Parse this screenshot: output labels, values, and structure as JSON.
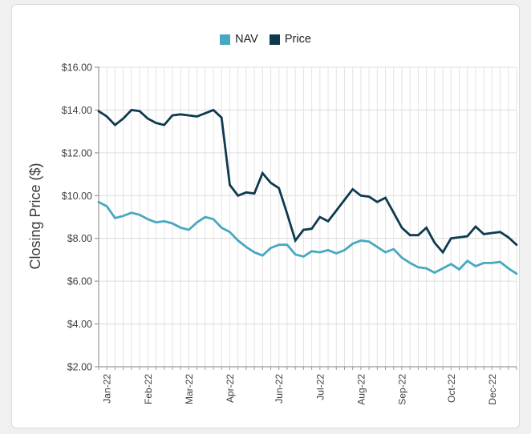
{
  "page": {
    "background": "#f0f0f1",
    "card_background": "#ffffff",
    "card_border": "#d9d9d9"
  },
  "chart_data": {
    "type": "line",
    "title": "",
    "xlabel": "",
    "ylabel": "Closing Price ($)",
    "ylim": [
      2,
      16
    ],
    "y_tick_step": 2,
    "y_tick_labels": [
      "$2.00",
      "$4.00",
      "$6.00",
      "$8.00",
      "$10.00",
      "$12.00",
      "$14.00",
      "$16.00"
    ],
    "x_ticks": [
      {
        "label": "Jan-22",
        "index": 1
      },
      {
        "label": "Feb-22",
        "index": 6
      },
      {
        "label": "Mar-22",
        "index": 11
      },
      {
        "label": "Apr-22",
        "index": 16
      },
      {
        "label": "Jun-22",
        "index": 22
      },
      {
        "label": "Jul-22",
        "index": 27
      },
      {
        "label": "Aug-22",
        "index": 32
      },
      {
        "label": "Sep-22",
        "index": 37
      },
      {
        "label": "Oct-22",
        "index": 43
      },
      {
        "label": "Dec-22",
        "index": 48
      }
    ],
    "grid": "both",
    "grid_color_vertical": "#e3e3e3",
    "grid_color_horizontal": "#dcdcdc",
    "axis_color": "#9a9a9a",
    "tick_label_color": "#404040",
    "legend_position": "top-center",
    "x_unit": "weekly, Jan-22 to Dec-22",
    "series": [
      {
        "name": "NAV",
        "color": "#47A8C2",
        "values": [
          9.7,
          9.5,
          8.95,
          9.05,
          9.2,
          9.1,
          8.9,
          8.75,
          8.8,
          8.7,
          8.5,
          8.4,
          8.75,
          9.0,
          8.9,
          8.5,
          8.3,
          7.9,
          7.6,
          7.35,
          7.2,
          7.55,
          7.7,
          7.7,
          7.25,
          7.15,
          7.4,
          7.35,
          7.45,
          7.3,
          7.45,
          7.75,
          7.9,
          7.85,
          7.6,
          7.35,
          7.5,
          7.1,
          6.85,
          6.65,
          6.6,
          6.4,
          6.6,
          6.8,
          6.55,
          6.95,
          6.7,
          6.85,
          6.85,
          6.9,
          6.6,
          6.35
        ]
      },
      {
        "name": "Price",
        "color": "#0E3A4F",
        "values": [
          13.95,
          13.7,
          13.3,
          13.6,
          14.0,
          13.95,
          13.6,
          13.4,
          13.3,
          13.75,
          13.8,
          13.75,
          13.7,
          13.85,
          14.0,
          13.65,
          10.5,
          10.0,
          10.15,
          10.1,
          11.05,
          10.6,
          10.35,
          9.15,
          7.9,
          8.4,
          8.45,
          9.0,
          8.8,
          9.3,
          9.8,
          10.3,
          10.0,
          9.95,
          9.7,
          9.9,
          9.2,
          8.5,
          8.15,
          8.15,
          8.5,
          7.8,
          7.35,
          8.0,
          8.05,
          8.1,
          8.55,
          8.2,
          8.25,
          8.3,
          8.05,
          7.7
        ]
      }
    ]
  }
}
